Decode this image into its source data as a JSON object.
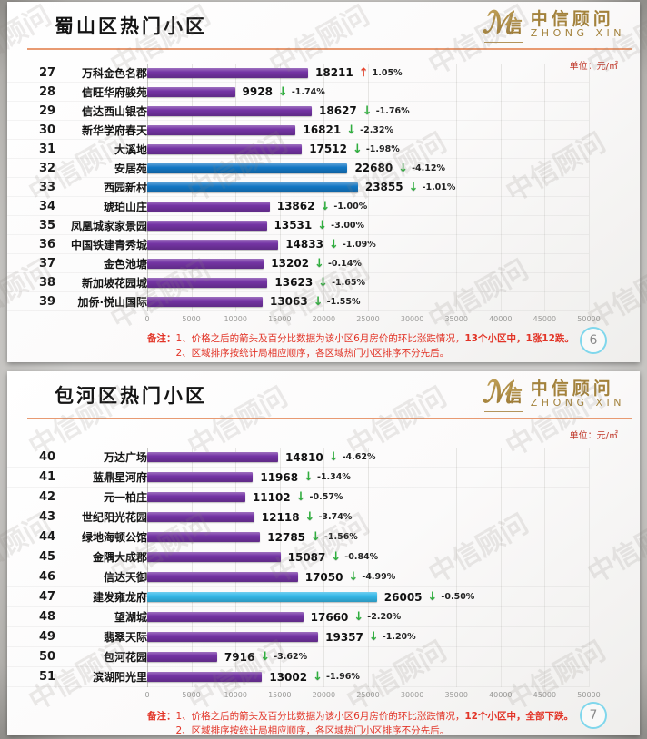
{
  "page": {
    "watermark": "中信顾问",
    "unit_label": "单位：元/㎡"
  },
  "brand": {
    "name_cn": "中信顾问",
    "name_en": "ZHONG XIN",
    "emblem_icon": {
      "name": "zhongxin-logo-icon",
      "script_glyph": "ℳ",
      "char_glyph": "信"
    }
  },
  "icons": {
    "up_arrow": "↑",
    "down_arrow": "↓"
  },
  "colors": {
    "purple": "#7434a4",
    "blue": "#1377c4",
    "cyan": "#35b9e9",
    "up": "#e8432c",
    "down": "#2fae3e",
    "accent_line": "#e89a72",
    "note_red": "#e23427",
    "gold": "#a3823c"
  },
  "slides": [
    {
      "title": "蜀山区热门小区",
      "page_number": "6",
      "note_label": "备注：",
      "note1_prefix": "1、价格之后的箭头及百分比数据为该小区6月房价的环比涨跌情况，",
      "note1_em": "13个小区中，1涨12跌。",
      "note2": "2、区域排序按统计局相应顺序，各区域热门小区排序不分先后。"
    },
    {
      "title": "包河区热门小区",
      "page_number": "7",
      "note_label": "备注：",
      "note1_prefix": "1、价格之后的箭头及百分比数据为该小区6月房价的环比涨跌情况，",
      "note1_em": "12个小区中，全部下跌。",
      "note2": "2、区域排序按统计局相应顺序，各区域热门小区排序不分先后。"
    }
  ],
  "chart_data": [
    {
      "type": "bar",
      "orientation": "horizontal",
      "title": "蜀山区热门小区",
      "unit": "元/㎡",
      "xlim": [
        0,
        50000
      ],
      "x_ticks": [
        "0",
        "5000",
        "10000",
        "15000",
        "20000",
        "25000",
        "30000",
        "35000",
        "40000",
        "45000",
        "50000"
      ],
      "grid": true,
      "bars": [
        {
          "rank": "27",
          "name": "万科金色名郡",
          "value": 18211,
          "change": "1.05%",
          "direction": "up",
          "color": "purple"
        },
        {
          "rank": "28",
          "name": "信旺华府骏苑",
          "value": 9928,
          "change": "-1.74%",
          "direction": "down",
          "color": "purple"
        },
        {
          "rank": "29",
          "name": "信达西山银杏",
          "value": 18627,
          "change": "-1.76%",
          "direction": "down",
          "color": "purple"
        },
        {
          "rank": "30",
          "name": "新华学府春天",
          "value": 16821,
          "change": "-2.32%",
          "direction": "down",
          "color": "purple"
        },
        {
          "rank": "31",
          "name": "大溪地",
          "value": 17512,
          "change": "-1.98%",
          "direction": "down",
          "color": "purple"
        },
        {
          "rank": "32",
          "name": "安居苑",
          "value": 22680,
          "change": "-4.12%",
          "direction": "down",
          "color": "blue"
        },
        {
          "rank": "33",
          "name": "西园新村",
          "value": 23855,
          "change": "-1.01%",
          "direction": "down",
          "color": "blue"
        },
        {
          "rank": "34",
          "name": "琥珀山庄",
          "value": 13862,
          "change": "-1.00%",
          "direction": "down",
          "color": "purple"
        },
        {
          "rank": "35",
          "name": "凤凰城家家景园",
          "value": 13531,
          "change": "-3.00%",
          "direction": "down",
          "color": "purple"
        },
        {
          "rank": "36",
          "name": "中国铁建青秀城",
          "value": 14833,
          "change": "-1.09%",
          "direction": "down",
          "color": "purple"
        },
        {
          "rank": "37",
          "name": "金色池塘",
          "value": 13202,
          "change": "-0.14%",
          "direction": "down",
          "color": "purple"
        },
        {
          "rank": "38",
          "name": "新加坡花园城",
          "value": 13623,
          "change": "-1.65%",
          "direction": "down",
          "color": "purple"
        },
        {
          "rank": "39",
          "name": "加侨·悦山国际",
          "value": 13063,
          "change": "-1.55%",
          "direction": "down",
          "color": "purple"
        }
      ]
    },
    {
      "type": "bar",
      "orientation": "horizontal",
      "title": "包河区热门小区",
      "unit": "元/㎡",
      "xlim": [
        0,
        50000
      ],
      "x_ticks": [
        "0",
        "5000",
        "10000",
        "15000",
        "20000",
        "25000",
        "30000",
        "35000",
        "40000",
        "45000",
        "50000"
      ],
      "grid": true,
      "bars": [
        {
          "rank": "40",
          "name": "万达广场",
          "value": 14810,
          "change": "-4.62%",
          "direction": "down",
          "color": "purple"
        },
        {
          "rank": "41",
          "name": "蓝鼎星河府",
          "value": 11968,
          "change": "-1.34%",
          "direction": "down",
          "color": "purple"
        },
        {
          "rank": "42",
          "name": "元一柏庄",
          "value": 11102,
          "change": "-0.57%",
          "direction": "down",
          "color": "purple"
        },
        {
          "rank": "43",
          "name": "世纪阳光花园",
          "value": 12118,
          "change": "-3.74%",
          "direction": "down",
          "color": "purple"
        },
        {
          "rank": "44",
          "name": "绿地海顿公馆",
          "value": 12785,
          "change": "-1.56%",
          "direction": "down",
          "color": "purple"
        },
        {
          "rank": "45",
          "name": "金隅大成郡",
          "value": 15087,
          "change": "-0.84%",
          "direction": "down",
          "color": "purple"
        },
        {
          "rank": "46",
          "name": "信达天御",
          "value": 17050,
          "change": "-4.99%",
          "direction": "down",
          "color": "purple"
        },
        {
          "rank": "47",
          "name": "建发雍龙府",
          "value": 26005,
          "change": "-0.50%",
          "direction": "down",
          "color": "cyan"
        },
        {
          "rank": "48",
          "name": "望湖城",
          "value": 17660,
          "change": "-2.20%",
          "direction": "down",
          "color": "purple"
        },
        {
          "rank": "49",
          "name": "翡翠天际",
          "value": 19357,
          "change": "-1.20%",
          "direction": "down",
          "color": "purple"
        },
        {
          "rank": "50",
          "name": "包河花园",
          "value": 7916,
          "change": "-3.62%",
          "direction": "down",
          "color": "purple"
        },
        {
          "rank": "51",
          "name": "滨湖阳光里",
          "value": 13002,
          "change": "-1.96%",
          "direction": "down",
          "color": "purple"
        }
      ]
    }
  ]
}
